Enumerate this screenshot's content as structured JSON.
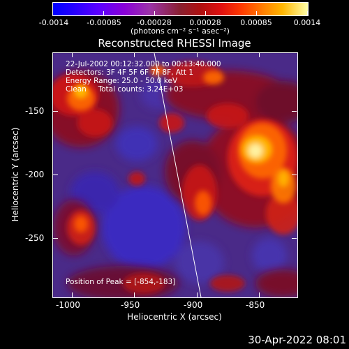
{
  "colorbar": {
    "tick_labels": [
      "-0.0014",
      "-0.00085",
      "-0.00028",
      "0.00028",
      "0.00085",
      "0.0014"
    ],
    "units_label": "(photons cm⁻² s⁻¹ asec⁻²)"
  },
  "plot": {
    "title": "Reconstructed RHESSI Image",
    "info": {
      "time_range": "22-Jul-2002 00:12:32.000 to 00:13:40.000",
      "detectors": "Detectors: 3F 4F 5F 6F 7F 8F, Att 1",
      "energy_range": "Energy Range: 25.0 - 50.0 keV",
      "method_counts": "Clean     Total counts: 3.24E+03"
    },
    "peak_position": "Position of Peak = [-854,-183]",
    "x_axis": {
      "label": "Heliocentric X (arcsec)",
      "tick_labels": [
        "-1000",
        "-950",
        "-900",
        "-850"
      ]
    },
    "y_axis": {
      "label": "Heliocentric Y (arcsec)",
      "tick_labels": [
        "-150",
        "-200",
        "-250"
      ]
    }
  },
  "footer": {
    "timestamp": "30-Apr-2022 08:01"
  }
}
